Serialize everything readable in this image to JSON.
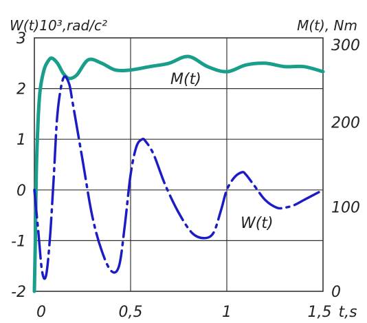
{
  "chart_data": {
    "type": "line",
    "title": "",
    "xlabel": "t,s",
    "ylabel_left": "W(t)10³,rad/c²",
    "ylabel_right": "M(t), Nm",
    "xlim": [
      0,
      1.5
    ],
    "ylim_left": [
      -2,
      3
    ],
    "ylim_right": [
      0,
      300
    ],
    "x_ticks": [
      "0",
      "0,5",
      "1",
      "1,5"
    ],
    "y_left_ticks": [
      "3",
      "2",
      "1",
      "0",
      "-1",
      "-2"
    ],
    "y_right_ticks": [
      "300",
      "200",
      "100",
      "0"
    ],
    "grid": true,
    "colors": {
      "M": "#1a9e8c",
      "W": "#1c1cc4",
      "grid": "#333333"
    },
    "series": [
      {
        "name": "M(t)",
        "axis": "right",
        "style": "solid",
        "x": [
          0,
          0.005,
          0.01,
          0.02,
          0.03,
          0.05,
          0.07,
          0.09,
          0.12,
          0.15,
          0.18,
          0.22,
          0.28,
          0.35,
          0.42,
          0.5,
          0.6,
          0.7,
          0.8,
          0.9,
          1.0,
          1.1,
          1.2,
          1.3,
          1.4,
          1.5
        ],
        "values": [
          0,
          60,
          140,
          205,
          238,
          262,
          272,
          276,
          270,
          258,
          252,
          256,
          274,
          270,
          262,
          262,
          266,
          270,
          278,
          266,
          260,
          268,
          270,
          266,
          266,
          260
        ]
      },
      {
        "name": "W(t)",
        "axis": "left",
        "style": "dash-dot",
        "x": [
          0,
          0.02,
          0.04,
          0.06,
          0.08,
          0.1,
          0.12,
          0.15,
          0.18,
          0.2,
          0.25,
          0.3,
          0.35,
          0.4,
          0.44,
          0.47,
          0.5,
          0.53,
          0.56,
          0.58,
          0.62,
          0.68,
          0.75,
          0.82,
          0.88,
          0.93,
          0.97,
          1.0,
          1.04,
          1.08,
          1.1,
          1.14,
          1.2,
          1.26,
          1.3,
          1.35,
          1.4,
          1.45,
          1.5
        ],
        "values": [
          0,
          -0.8,
          -1.6,
          -1.7,
          -1.0,
          0.2,
          1.5,
          2.2,
          2.1,
          1.7,
          0.6,
          -0.5,
          -1.2,
          -1.6,
          -1.5,
          -0.7,
          0.3,
          0.85,
          1.0,
          0.95,
          0.7,
          0.1,
          -0.45,
          -0.85,
          -0.95,
          -0.85,
          -0.4,
          0.0,
          0.25,
          0.35,
          0.3,
          0.1,
          -0.2,
          -0.35,
          -0.35,
          -0.3,
          -0.2,
          -0.1,
          0.0
        ]
      }
    ],
    "annotations": [
      "M(t)",
      "W(t)"
    ]
  }
}
